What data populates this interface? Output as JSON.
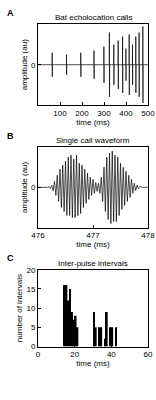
{
  "chart_data": [
    {
      "type": "line",
      "annotations": [
        "A"
      ],
      "title": "Bat echolocation calls",
      "x_label": "time (ms)",
      "y_label": "amplitude (au)",
      "color": "#000000",
      "x": [
        0,
        64,
        64.5,
        65,
        65.5,
        129,
        129.5,
        130,
        130.5,
        194,
        194.5,
        195,
        195.5,
        254,
        254.5,
        255,
        255.5,
        299,
        299.5,
        300,
        300.5,
        324,
        324.5,
        325,
        325.5,
        344,
        344.5,
        345,
        345.5,
        364,
        364.5,
        365,
        365.5,
        384,
        384.5,
        385,
        385.5,
        399,
        399.5,
        400,
        400.5,
        414,
        414.5,
        415,
        415.5,
        429,
        429.5,
        430,
        430.5,
        444,
        444.5,
        445,
        445.5,
        459,
        459.5,
        460,
        460.5,
        476,
        476.5,
        477,
        477.5,
        500
      ],
      "values": [
        0,
        0,
        0.3,
        -0.3,
        0,
        0,
        0.25,
        -0.25,
        0,
        0,
        0.3,
        -0.3,
        0,
        0,
        0.35,
        -0.35,
        0,
        0,
        0.45,
        -0.45,
        0,
        0,
        0.8,
        -0.8,
        0,
        0,
        0.5,
        -0.5,
        0,
        0,
        0.6,
        -0.6,
        0,
        0,
        0.7,
        -0.7,
        0,
        0,
        0.4,
        -0.4,
        0,
        0,
        0.75,
        -0.75,
        0,
        0,
        0.5,
        -0.5,
        0,
        0,
        0.7,
        -0.7,
        0,
        0,
        0.8,
        -0.8,
        0,
        0,
        0.95,
        -0.95,
        0,
        0
      ],
      "xlim": [
        0,
        500
      ],
      "xticks": [
        100,
        200,
        300,
        400,
        500
      ],
      "ylim": [
        -1,
        1
      ],
      "yticks": [
        0
      ],
      "grid": false
    },
    {
      "type": "line",
      "annotations": [
        "B"
      ],
      "title": "Single call waveform",
      "x_label": "time (ms)",
      "y_label": "amplitude (au)",
      "color": "#000000",
      "x": [
        476,
        476.025,
        476.05,
        476.075,
        476.1,
        476.125,
        476.15,
        476.175,
        476.2,
        476.225,
        476.25,
        476.275,
        476.3,
        476.325,
        476.35,
        476.375,
        476.4,
        476.425,
        476.45,
        476.475,
        476.5,
        476.525,
        476.55,
        476.575,
        476.6,
        476.625,
        476.65,
        476.675,
        476.7,
        476.725,
        476.75,
        476.775,
        476.8,
        476.825,
        476.85,
        476.875,
        476.9,
        476.925,
        476.95,
        476.975,
        477,
        477.025,
        477.05,
        477.075,
        477.1,
        477.125,
        477.15,
        477.175,
        477.2,
        477.225,
        477.25,
        477.275,
        477.3,
        477.325,
        477.35,
        477.375,
        477.4,
        477.425,
        477.45,
        477.475,
        477.5,
        477.525,
        477.55,
        477.575,
        477.6,
        477.625,
        477.65,
        477.675,
        477.7,
        477.725,
        477.75,
        477.775,
        477.8,
        477.825,
        477.85,
        477.875,
        477.9,
        477.925,
        477.95,
        477.975,
        478
      ],
      "values": [
        0,
        0,
        0,
        0,
        0,
        0,
        0,
        0,
        0.02,
        -0.03,
        0.05,
        -0.08,
        0.15,
        -0.2,
        0.3,
        -0.35,
        0.45,
        -0.5,
        0.55,
        -0.6,
        0.65,
        -0.7,
        0.75,
        -0.7,
        0.8,
        -0.75,
        0.7,
        -0.75,
        0.8,
        -0.7,
        0.6,
        -0.65,
        0.55,
        -0.5,
        0.45,
        -0.4,
        0.35,
        -0.3,
        0.25,
        -0.2,
        0.2,
        -0.15,
        0.12,
        -0.1,
        0.1,
        -0.15,
        0.25,
        -0.35,
        0.5,
        -0.6,
        0.75,
        -0.8,
        0.85,
        -0.9,
        0.9,
        -0.85,
        0.8,
        -0.85,
        0.75,
        -0.7,
        0.6,
        -0.55,
        0.5,
        -0.45,
        0.4,
        -0.35,
        0.3,
        -0.25,
        0.2,
        -0.15,
        0.1,
        -0.08,
        0.05,
        -0.03,
        0.02,
        0,
        0,
        0,
        0,
        0,
        0
      ],
      "xlim": [
        476,
        478
      ],
      "xticks": [
        476,
        477,
        478
      ],
      "ylim": [
        -1,
        1
      ],
      "yticks": [
        0
      ],
      "grid": false
    },
    {
      "type": "histogram",
      "annotations": [
        "C"
      ],
      "title": "Inter-pulse intervals",
      "x_label": "time (ms)",
      "y_label": "number of intervals",
      "color": "#000000",
      "bins": [
        12,
        13,
        14,
        15,
        16,
        17,
        18,
        19,
        20,
        21,
        22,
        23,
        24,
        25,
        26,
        27,
        28,
        29,
        30,
        31,
        32,
        33,
        34,
        35,
        36,
        37,
        38,
        39,
        40,
        41,
        42,
        43,
        44
      ],
      "values": [
        0,
        0,
        16,
        16,
        12,
        15,
        9,
        7,
        8,
        5,
        0,
        0,
        0,
        0,
        0,
        0,
        0,
        0,
        9,
        5,
        0,
        5,
        5,
        0,
        2,
        9,
        0,
        5,
        5,
        0,
        5,
        0
      ],
      "xlim": [
        0,
        60
      ],
      "xticks": [
        0,
        20,
        40,
        60
      ],
      "ylim": [
        0,
        20
      ],
      "yticks": [
        0,
        5,
        10,
        15,
        20
      ],
      "grid": false
    }
  ]
}
